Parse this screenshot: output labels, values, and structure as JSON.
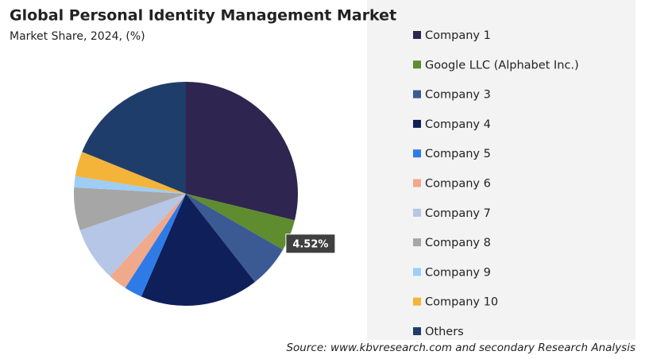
{
  "chart_data": {
    "type": "pie",
    "title": "Global Personal Identity Management Market",
    "subtitle": "Market Share, 2024, (%)",
    "source": "Source: www.kbvresearch.com and secondary Research Analysis",
    "categories": [
      "Company 1",
      "Google LLC (Alphabet Inc.)",
      "Company 3",
      "Company 4",
      "Company 5",
      "Company 6",
      "Company 7",
      "Company 8",
      "Company 9",
      "Company 10",
      "Others"
    ],
    "values": [
      28.8,
      4.52,
      6.1,
      17.1,
      2.6,
      2.7,
      7.9,
      6.2,
      1.6,
      3.6,
      18.88
    ],
    "value_labels": [
      null,
      "4.52%",
      null,
      null,
      null,
      null,
      null,
      null,
      null,
      null,
      null
    ],
    "colors": [
      "#2e2651",
      "#5f8c2e",
      "#3b5a94",
      "#0f1f5a",
      "#2e7be8",
      "#f0a98a",
      "#b5c6e6",
      "#a6a6a6",
      "#9ecdf5",
      "#f4b43a",
      "#1f3d6b"
    ],
    "legend": "right"
  }
}
